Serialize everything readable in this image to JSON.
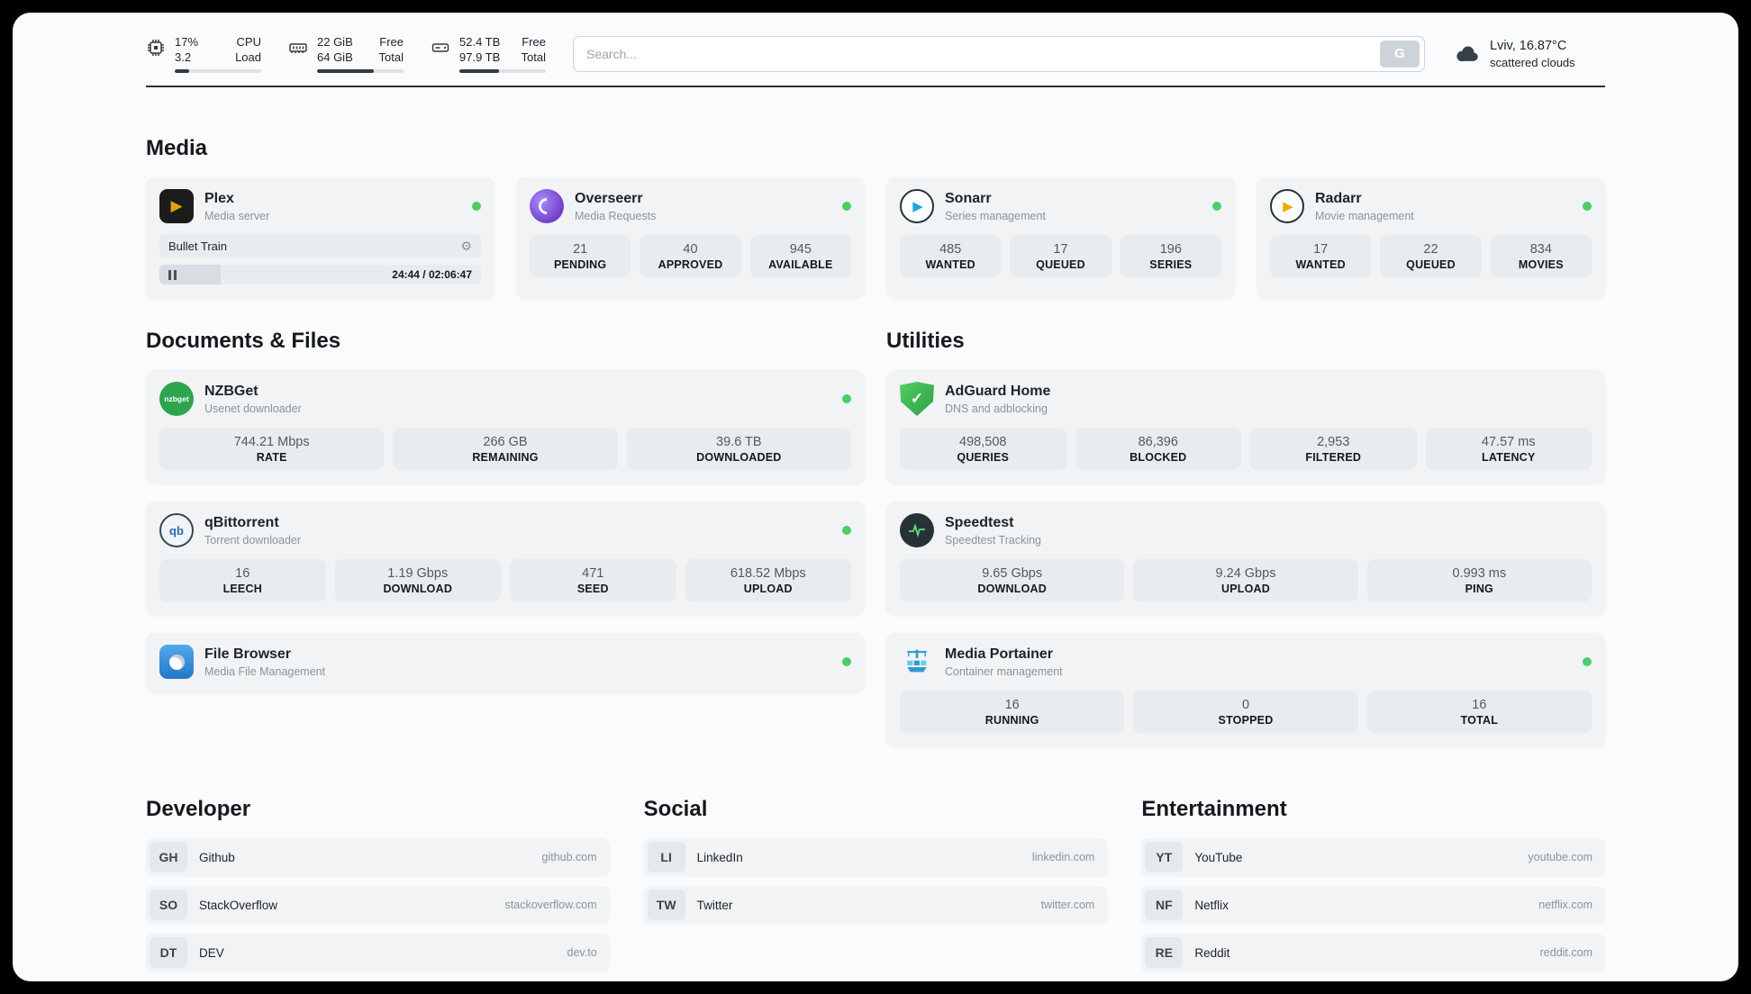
{
  "colors": {
    "frame_bg": "#000000",
    "panel_bg": "#fafbfc",
    "card_bg": "#f1f3f5",
    "stat_bg": "#e9ecef",
    "status_green": "#4ccd6a",
    "plex_amber": "#e5a00d",
    "sonarr_blue": "#1ea6dc",
    "radarr_gold": "#f0a70a",
    "adguard_green": "#2f9e44"
  },
  "icons": {
    "plex": "▶",
    "gear": "⚙",
    "sonarr_play": "▶",
    "radarr_play": "▶",
    "adguard_check": "✓",
    "nzbget_label": "nzbget",
    "qbittorrent_label": "qb"
  },
  "topbar": {
    "cpu": {
      "value1": "17%",
      "value2": "3.2",
      "label1": "CPU",
      "label2": "Load",
      "bar_percent": 17
    },
    "ram": {
      "value1": "22 GiB",
      "value2": "64 GiB",
      "label1": "Free",
      "label2": "Total",
      "bar_percent": 66
    },
    "disk": {
      "value1": "52.4 TB",
      "value2": "97.9 TB",
      "label1": "Free",
      "label2": "Total",
      "bar_percent": 46
    },
    "search": {
      "placeholder": "Search...",
      "button_label": "G"
    },
    "weather": {
      "location": "Lviv, 16.87°C",
      "condition": "scattered clouds"
    }
  },
  "sections": {
    "media": {
      "title": "Media",
      "cards": [
        {
          "name": "Plex",
          "subtitle": "Media server",
          "player": {
            "track_title": "Bullet Train",
            "time": "24:44 / 02:06:47",
            "progress_percent": 19
          }
        },
        {
          "name": "Overseerr",
          "subtitle": "Media Requests",
          "stats": [
            {
              "value": "21",
              "label": "PENDING"
            },
            {
              "value": "40",
              "label": "APPROVED"
            },
            {
              "value": "945",
              "label": "AVAILABLE"
            }
          ]
        },
        {
          "name": "Sonarr",
          "subtitle": "Series management",
          "stats": [
            {
              "value": "485",
              "label": "WANTED"
            },
            {
              "value": "17",
              "label": "QUEUED"
            },
            {
              "value": "196",
              "label": "SERIES"
            }
          ]
        },
        {
          "name": "Radarr",
          "subtitle": "Movie management",
          "stats": [
            {
              "value": "17",
              "label": "WANTED"
            },
            {
              "value": "22",
              "label": "QUEUED"
            },
            {
              "value": "834",
              "label": "MOVIES"
            }
          ]
        }
      ]
    },
    "documents": {
      "title": "Documents & Files",
      "cards": [
        {
          "name": "NZBGet",
          "subtitle": "Usenet downloader",
          "stats": [
            {
              "value": "744.21 Mbps",
              "label": "RATE"
            },
            {
              "value": "266 GB",
              "label": "REMAINING"
            },
            {
              "value": "39.6 TB",
              "label": "DOWNLOADED"
            }
          ]
        },
        {
          "name": "qBittorrent",
          "subtitle": "Torrent downloader",
          "stats": [
            {
              "value": "16",
              "label": "LEECH"
            },
            {
              "value": "1.19 Gbps",
              "label": "DOWNLOAD"
            },
            {
              "value": "471",
              "label": "SEED"
            },
            {
              "value": "618.52 Mbps",
              "label": "UPLOAD"
            }
          ]
        },
        {
          "name": "File Browser",
          "subtitle": "Media File Management",
          "stats": []
        }
      ]
    },
    "utilities": {
      "title": "Utilities",
      "cards": [
        {
          "name": "AdGuard Home",
          "subtitle": "DNS and adblocking",
          "stats": [
            {
              "value": "498,508",
              "label": "QUERIES"
            },
            {
              "value": "86,396",
              "label": "BLOCKED"
            },
            {
              "value": "2,953",
              "label": "FILTERED"
            },
            {
              "value": "47.57 ms",
              "label": "LATENCY"
            }
          ]
        },
        {
          "name": "Speedtest",
          "subtitle": "Speedtest Tracking",
          "stats": [
            {
              "value": "9.65 Gbps",
              "label": "DOWNLOAD"
            },
            {
              "value": "9.24 Gbps",
              "label": "UPLOAD"
            },
            {
              "value": "0.993 ms",
              "label": "PING"
            }
          ]
        },
        {
          "name": "Media Portainer",
          "subtitle": "Container management",
          "stats": [
            {
              "value": "16",
              "label": "RUNNING"
            },
            {
              "value": "0",
              "label": "STOPPED"
            },
            {
              "value": "16",
              "label": "TOTAL"
            }
          ]
        }
      ]
    },
    "developer": {
      "title": "Developer",
      "items": [
        {
          "abbr": "GH",
          "name": "Github",
          "url": "github.com"
        },
        {
          "abbr": "SO",
          "name": "StackOverflow",
          "url": "stackoverflow.com"
        },
        {
          "abbr": "DT",
          "name": "DEV",
          "url": "dev.to"
        }
      ]
    },
    "social": {
      "title": "Social",
      "items": [
        {
          "abbr": "LI",
          "name": "LinkedIn",
          "url": "linkedin.com"
        },
        {
          "abbr": "TW",
          "name": "Twitter",
          "url": "twitter.com"
        }
      ]
    },
    "entertainment": {
      "title": "Entertainment",
      "items": [
        {
          "abbr": "YT",
          "name": "YouTube",
          "url": "youtube.com"
        },
        {
          "abbr": "NF",
          "name": "Netflix",
          "url": "netflix.com"
        },
        {
          "abbr": "RE",
          "name": "Reddit",
          "url": "reddit.com"
        }
      ]
    }
  }
}
